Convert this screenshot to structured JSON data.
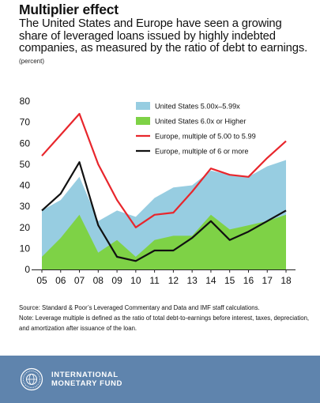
{
  "header": {
    "title": "Multiplier effect",
    "subtitle": "The United States and Europe have seen a growing share of leveraged loans issued by highly indebted companies, as measured by the ratio of debt to earnings.",
    "unit": "(percent)"
  },
  "chart_data": {
    "type": "area",
    "categories": [
      "05",
      "06",
      "07",
      "08",
      "09",
      "10",
      "11",
      "12",
      "13",
      "14",
      "15",
      "16",
      "17",
      "18"
    ],
    "ylim": [
      0,
      80
    ],
    "yticks": [
      0,
      10,
      20,
      30,
      40,
      50,
      60,
      70,
      80
    ],
    "grid": false,
    "legend_position": "top-right",
    "series": [
      {
        "name": "United States 5.00x–5.99x",
        "kind": "area",
        "color": "#97cde1",
        "values": [
          28,
          33,
          44,
          23,
          28,
          25,
          34,
          39,
          40,
          47,
          45,
          44,
          49,
          52
        ]
      },
      {
        "name": "United States 6.0x or Higher",
        "kind": "area",
        "color": "#7ed246",
        "values": [
          6,
          15,
          26,
          8,
          14,
          6,
          14,
          16,
          16,
          26,
          19,
          21,
          23,
          26
        ]
      },
      {
        "name": "Europe, multiple of 5.00 to 5.99",
        "kind": "line",
        "color": "#e8262c",
        "values": [
          54,
          64,
          74,
          50,
          33,
          20,
          26,
          27,
          37,
          48,
          45,
          44,
          53,
          61
        ]
      },
      {
        "name": "Europe, multiple of 6 or more",
        "kind": "line",
        "color": "#111111",
        "values": [
          28,
          36,
          51,
          21,
          6,
          4,
          9,
          9,
          15,
          23,
          14,
          18,
          23,
          28
        ]
      }
    ]
  },
  "notes": {
    "source": "Source: Standard & Poor’s Leveraged Commentary and Data and IMF staff calculations.",
    "note": "Note: Leverage multiple is defined as the ratio of total debt-to-earnings before interest, taxes, depreciation, and amortization after issuance of the loan."
  },
  "footer": {
    "brand_line1": "INTERNATIONAL",
    "brand_line2": "MONETARY FUND",
    "logo_icon": "imf-seal-icon",
    "background_color": "#5f84ad"
  }
}
